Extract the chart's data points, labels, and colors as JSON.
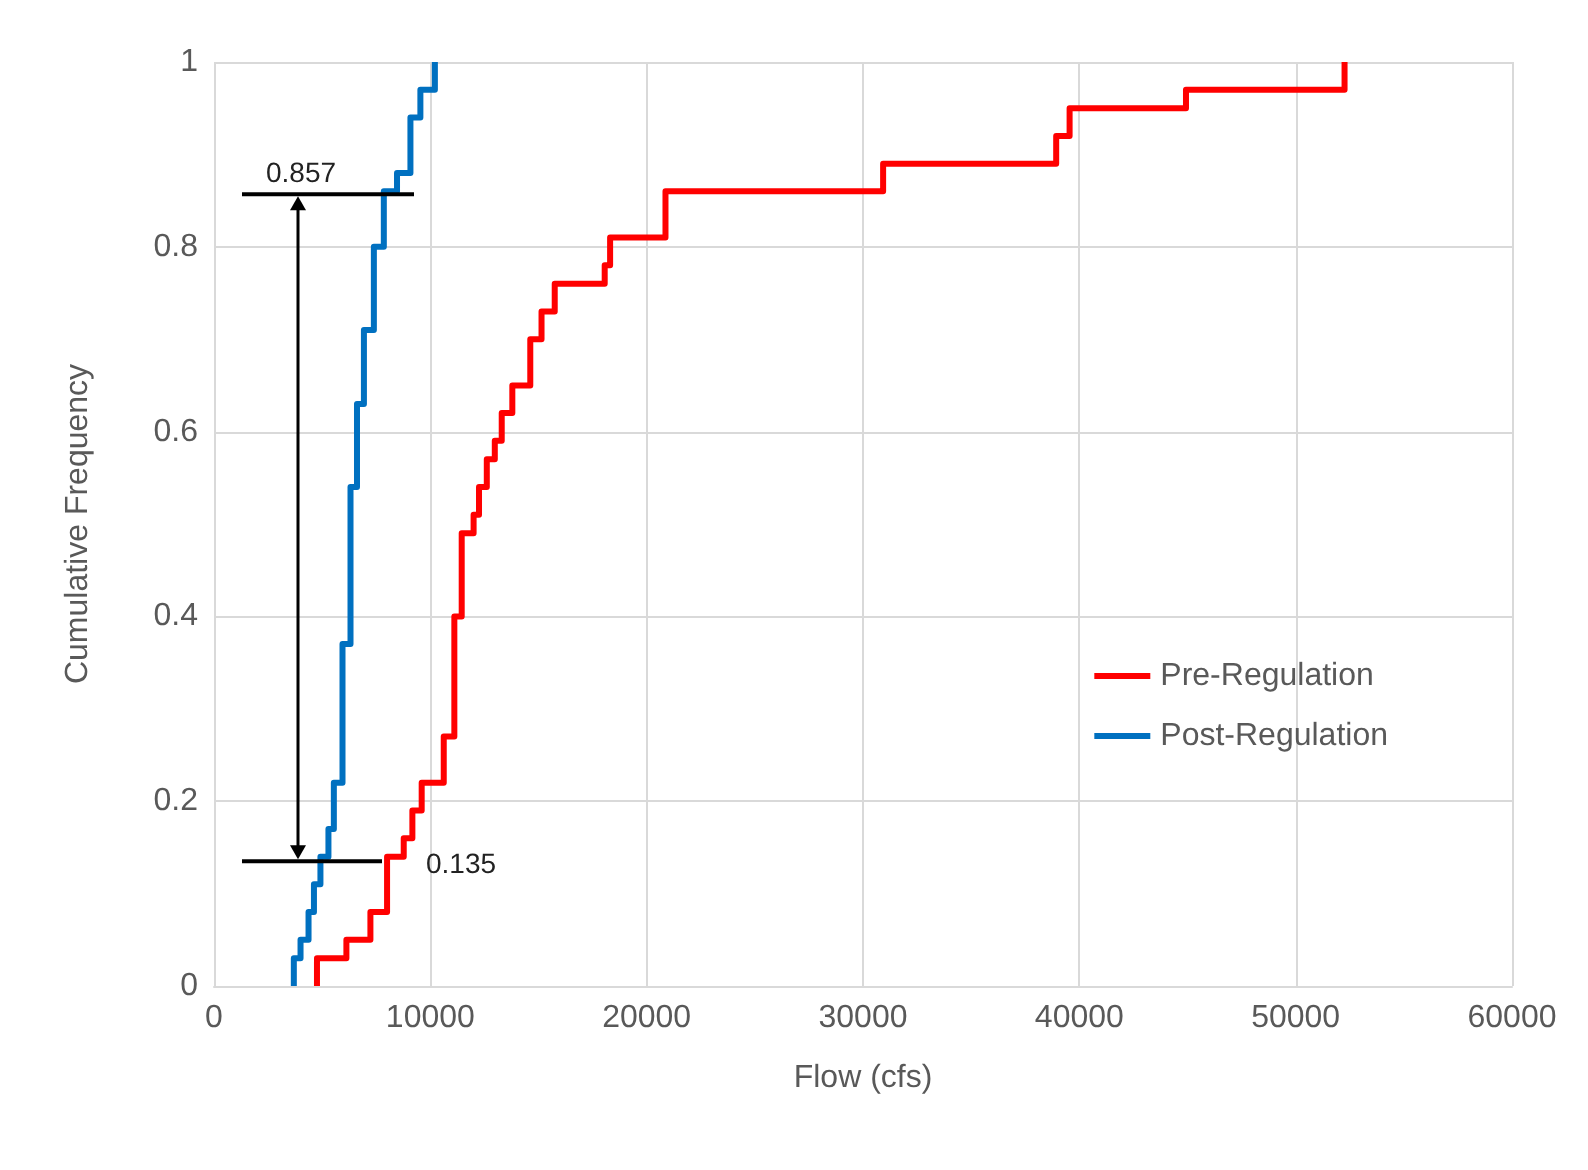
{
  "chart_data": {
    "type": "step",
    "xlabel": "Flow (cfs)",
    "ylabel": "Cumulative Frequency",
    "xlim": [
      0,
      60000
    ],
    "xticks": [
      0,
      10000,
      20000,
      30000,
      40000,
      50000,
      60000
    ],
    "ylim": [
      0,
      1
    ],
    "yticks": [
      0,
      0.2,
      0.4,
      0.6,
      0.8,
      1
    ],
    "grid": true,
    "legend": "right",
    "marker": "none",
    "line_style": "solid",
    "series": [
      {
        "name": "Pre-Regulation",
        "color": "#ff0000",
        "x": [
          4760,
          4760,
          6120,
          7230,
          8000,
          8770,
          9170,
          9600,
          10620,
          11110,
          11450,
          12000,
          12250,
          12610,
          12980,
          13300,
          13790,
          14620,
          15140,
          15750,
          18060,
          18310,
          20870,
          30930,
          38930,
          39550,
          44930,
          52260
        ],
        "values": [
          0,
          0.03,
          0.05,
          0.08,
          0.14,
          0.16,
          0.19,
          0.22,
          0.27,
          0.4,
          0.49,
          0.51,
          0.54,
          0.57,
          0.59,
          0.62,
          0.65,
          0.7,
          0.73,
          0.76,
          0.78,
          0.81,
          0.86,
          0.89,
          0.92,
          0.95,
          0.97,
          1
        ]
      },
      {
        "name": "Post-Regulation",
        "color": "#0070c0",
        "x": [
          3690,
          3690,
          4000,
          4370,
          4620,
          4920,
          5290,
          5540,
          5940,
          6310,
          6610,
          6930,
          7390,
          7850,
          8460,
          9080,
          9540,
          10210
        ],
        "values": [
          0,
          0.03,
          0.05,
          0.08,
          0.11,
          0.14,
          0.17,
          0.22,
          0.37,
          0.54,
          0.63,
          0.71,
          0.8,
          0.86,
          0.88,
          0.94,
          0.97,
          1
        ]
      }
    ],
    "ref_lines": [
      {
        "axis": "y",
        "value": 0.857,
        "label": "0.857",
        "color": "#000000"
      },
      {
        "axis": "y",
        "value": 0.135,
        "label": "0.135",
        "color": "#000000"
      }
    ]
  }
}
